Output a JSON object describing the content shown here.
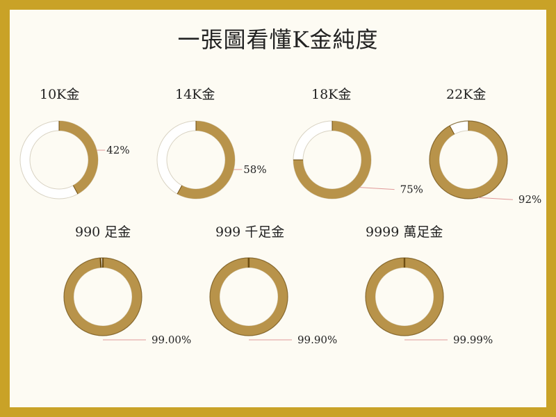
{
  "title": "一張圖看懂K金純度",
  "colors": {
    "frame": "#c9a227",
    "background": "#fdfbf3",
    "gold": "#b8934a",
    "gold_edge": "#6e4e12",
    "remainder": "#ffffff",
    "ring_outline": "#d8d2c2",
    "leader": "#e09898",
    "leader_green": "#4caf50"
  },
  "chart_data": {
    "type": "pie",
    "variant": "donut",
    "title": "一張圖看懂K金純度",
    "series": [
      {
        "name": "10K金",
        "value": 42,
        "value_label": "42%"
      },
      {
        "name": "14K金",
        "value": 58,
        "value_label": "58%"
      },
      {
        "name": "18K金",
        "value": 75,
        "value_label": "75%"
      },
      {
        "name": "22K金",
        "value": 92,
        "value_label": "92%"
      },
      {
        "name": "990 足金",
        "value": 99.0,
        "value_label": "99.00%"
      },
      {
        "name": "999 千足金",
        "value": 99.9,
        "value_label": "99.90%"
      },
      {
        "name": "9999 萬足金",
        "value": 99.99,
        "value_label": "99.99%"
      }
    ]
  }
}
